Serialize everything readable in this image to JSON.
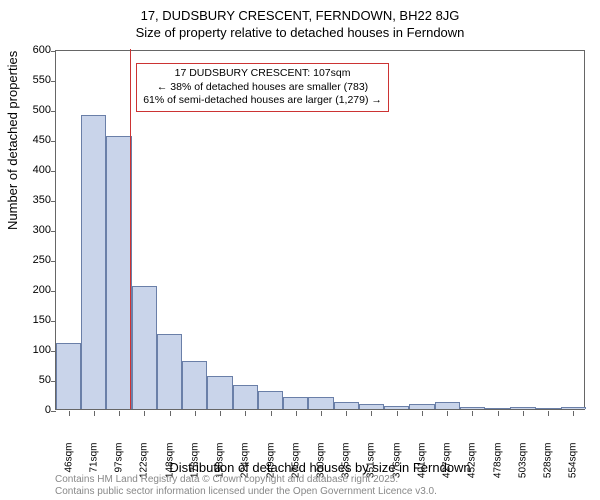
{
  "title_main": "17, DUDSBURY CRESCENT, FERNDOWN, BH22 8JG",
  "title_sub": "Size of property relative to detached houses in Ferndown",
  "ylabel": "Number of detached properties",
  "xlabel": "Distribution of detached houses by size in Ferndown",
  "footer_line1": "Contains HM Land Registry data © Crown copyright and database right 2025.",
  "footer_line2": "Contains public sector information licensed under the Open Government Licence v3.0.",
  "chart": {
    "type": "histogram",
    "ylim": [
      0,
      600
    ],
    "ytick_step": 50,
    "x_categories": [
      "46sqm",
      "71sqm",
      "97sqm",
      "122sqm",
      "148sqm",
      "173sqm",
      "198sqm",
      "224sqm",
      "249sqm",
      "275sqm",
      "300sqm",
      "325sqm",
      "351sqm",
      "376sqm",
      "401sqm",
      "427sqm",
      "452sqm",
      "478sqm",
      "503sqm",
      "528sqm",
      "554sqm"
    ],
    "values": [
      110,
      490,
      455,
      205,
      125,
      80,
      55,
      40,
      30,
      20,
      20,
      12,
      8,
      5,
      8,
      12,
      3,
      2,
      3,
      2,
      3
    ],
    "bar_fill": "#c9d4ea",
    "bar_stroke": "#6a7fa8",
    "bar_stroke_width": 1,
    "background_color": "#ffffff",
    "axis_color": "#666666",
    "marker_value_sqm": 107,
    "marker_color": "#cc3333",
    "annotation": {
      "line1": "17 DUDSBURY CRESCENT: 107sqm",
      "line2": "← 38% of detached houses are smaller (783)",
      "line3": "61% of semi-detached houses are larger (1,279) →",
      "border_color": "#cc3333",
      "font_size": 10.5
    }
  }
}
